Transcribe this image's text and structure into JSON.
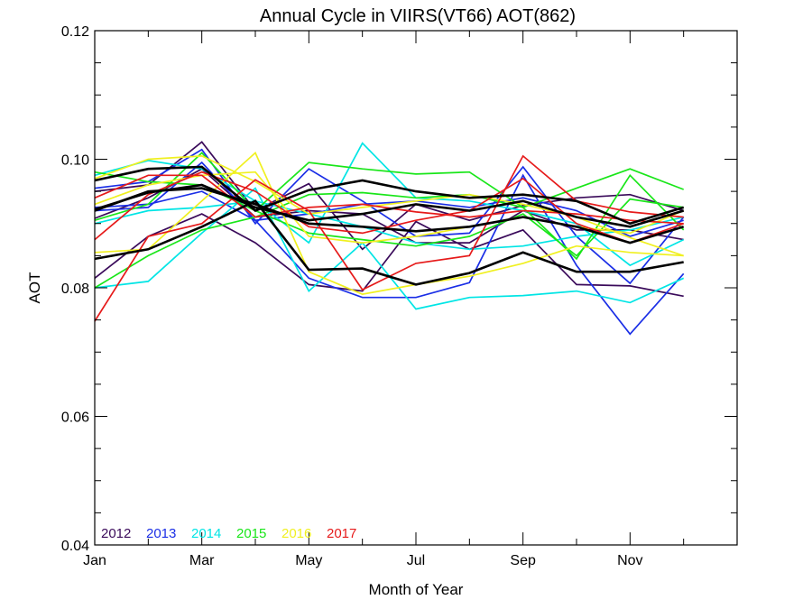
{
  "chart_data": {
    "type": "line",
    "title": "Annual Cycle in VIIRS(VT66) AOT(862)",
    "xlabel": "Month of Year",
    "ylabel": "AOT",
    "xlim": [
      1,
      13
    ],
    "ylim": [
      0.04,
      0.12
    ],
    "x": [
      1,
      2,
      3,
      4,
      5,
      6,
      7,
      8,
      9,
      10,
      11,
      12
    ],
    "xtick_values": [
      1,
      3,
      5,
      7,
      9,
      11
    ],
    "xtick_labels": [
      "Jan",
      "Mar",
      "May",
      "Jul",
      "Sep",
      "Nov"
    ],
    "ytick_values": [
      0.04,
      0.06,
      0.08,
      0.1,
      0.12
    ],
    "ytick_labels": [
      "0.04",
      "0.06",
      "0.08",
      "0.10",
      "0.12"
    ],
    "grid": false,
    "legend_position": "bottom-left",
    "legend": [
      {
        "label": "2012",
        "color": "#3a0a5a"
      },
      {
        "label": "2013",
        "color": "#1a2ee6"
      },
      {
        "label": "2014",
        "color": "#00e5e5"
      },
      {
        "label": "2015",
        "color": "#19e619"
      },
      {
        "label": "2016",
        "color": "#f0f020"
      },
      {
        "label": "2017",
        "color": "#e61a1a"
      }
    ],
    "series": [
      {
        "color": "#3a0a5a",
        "bold": false,
        "values": [
          0.0815,
          0.088,
          0.0915,
          0.087,
          0.0805,
          0.0795,
          0.0903,
          0.086,
          0.089,
          0.0805,
          0.0803,
          0.0787
        ]
      },
      {
        "color": "#3a0a5a",
        "bold": false,
        "values": [
          0.095,
          0.096,
          0.1027,
          0.092,
          0.0962,
          0.086,
          0.093,
          0.0905,
          0.0928,
          0.094,
          0.0945,
          0.092
        ]
      },
      {
        "color": "#3a0a5a",
        "bold": false,
        "values": [
          0.0908,
          0.094,
          0.0985,
          0.091,
          0.092,
          0.0915,
          0.087,
          0.087,
          0.092,
          0.089,
          0.089,
          0.0875
        ]
      },
      {
        "color": "#1a2ee6",
        "bold": false,
        "values": [
          0.0955,
          0.0965,
          0.1015,
          0.09,
          0.0985,
          0.0935,
          0.088,
          0.0885,
          0.0988,
          0.088,
          0.0807,
          0.091
        ]
      },
      {
        "color": "#1a2ee6",
        "bold": false,
        "values": [
          0.092,
          0.0925,
          0.0995,
          0.0905,
          0.0815,
          0.0785,
          0.0785,
          0.0808,
          0.0975,
          0.0835,
          0.0728,
          0.0822
        ]
      },
      {
        "color": "#1a2ee6",
        "bold": false,
        "values": [
          0.0925,
          0.093,
          0.095,
          0.0905,
          0.0915,
          0.093,
          0.0935,
          0.0925,
          0.094,
          0.092,
          0.088,
          0.0905
        ]
      },
      {
        "color": "#00e5e5",
        "bold": false,
        "values": [
          0.08,
          0.081,
          0.0885,
          0.0955,
          0.0795,
          0.087,
          0.0767,
          0.0785,
          0.0788,
          0.0795,
          0.0777,
          0.0815
        ]
      },
      {
        "color": "#00e5e5",
        "bold": false,
        "values": [
          0.0975,
          0.0998,
          0.0985,
          0.0935,
          0.087,
          0.1025,
          0.094,
          0.0935,
          0.092,
          0.09,
          0.0835,
          0.0875
        ]
      },
      {
        "color": "#00e5e5",
        "bold": false,
        "values": [
          0.09,
          0.092,
          0.0925,
          0.0935,
          0.0915,
          0.0895,
          0.087,
          0.086,
          0.0865,
          0.088,
          0.089,
          0.091
        ]
      },
      {
        "color": "#19e619",
        "bold": false,
        "values": [
          0.0905,
          0.093,
          0.101,
          0.092,
          0.0995,
          0.0985,
          0.0977,
          0.098,
          0.0925,
          0.0955,
          0.0985,
          0.0953
        ]
      },
      {
        "color": "#19e619",
        "bold": false,
        "values": [
          0.08,
          0.085,
          0.089,
          0.091,
          0.0945,
          0.0948,
          0.094,
          0.0945,
          0.0925,
          0.0845,
          0.0975,
          0.089
        ]
      },
      {
        "color": "#19e619",
        "bold": false,
        "values": [
          0.098,
          0.0965,
          0.096,
          0.092,
          0.0885,
          0.0875,
          0.0865,
          0.088,
          0.0915,
          0.085,
          0.0938,
          0.0925
        ]
      },
      {
        "color": "#f0f020",
        "bold": false,
        "values": [
          0.097,
          0.1,
          0.1005,
          0.0965,
          0.0915,
          0.0925,
          0.0935,
          0.0945,
          0.093,
          0.091,
          0.0878,
          0.085
        ]
      },
      {
        "color": "#f0f020",
        "bold": false,
        "values": [
          0.0855,
          0.086,
          0.0935,
          0.101,
          0.0825,
          0.079,
          0.0805,
          0.0818,
          0.0838,
          0.0865,
          0.0855,
          0.085
        ]
      },
      {
        "color": "#f0f020",
        "bold": false,
        "values": [
          0.093,
          0.096,
          0.0975,
          0.098,
          0.088,
          0.087,
          0.088,
          0.0895,
          0.091,
          0.0895,
          0.0885,
          0.092
        ]
      },
      {
        "color": "#e61a1a",
        "bold": false,
        "values": [
          0.0748,
          0.088,
          0.09,
          0.0968,
          0.092,
          0.0797,
          0.0838,
          0.085,
          0.1005,
          0.0935,
          0.0918,
          0.091
        ]
      },
      {
        "color": "#e61a1a",
        "bold": false,
        "values": [
          0.0875,
          0.0945,
          0.098,
          0.095,
          0.0895,
          0.0885,
          0.0905,
          0.092,
          0.097,
          0.09,
          0.087,
          0.09
        ]
      },
      {
        "color": "#e61a1a",
        "bold": false,
        "values": [
          0.094,
          0.0975,
          0.0975,
          0.091,
          0.0925,
          0.093,
          0.0918,
          0.091,
          0.092,
          0.0915,
          0.0905,
          0.09
        ]
      },
      {
        "color": "#000000",
        "bold": true,
        "values": [
          0.0967,
          0.0985,
          0.0988,
          0.092,
          0.0952,
          0.0967,
          0.095,
          0.094,
          0.0945,
          0.0935,
          0.09,
          0.0925
        ]
      },
      {
        "color": "#000000",
        "bold": true,
        "values": [
          0.0922,
          0.0948,
          0.096,
          0.0925,
          0.0905,
          0.0915,
          0.093,
          0.092,
          0.0935,
          0.091,
          0.0895,
          0.092
        ]
      },
      {
        "color": "#000000",
        "bold": true,
        "values": [
          0.0845,
          0.086,
          0.0895,
          0.0935,
          0.0828,
          0.083,
          0.0805,
          0.0823,
          0.0855,
          0.0825,
          0.0825,
          0.084
        ]
      },
      {
        "color": "#000000",
        "bold": true,
        "values": [
          0.092,
          0.095,
          0.0955,
          0.093,
          0.09,
          0.0895,
          0.0888,
          0.0895,
          0.091,
          0.0895,
          0.087,
          0.0895
        ]
      }
    ]
  }
}
